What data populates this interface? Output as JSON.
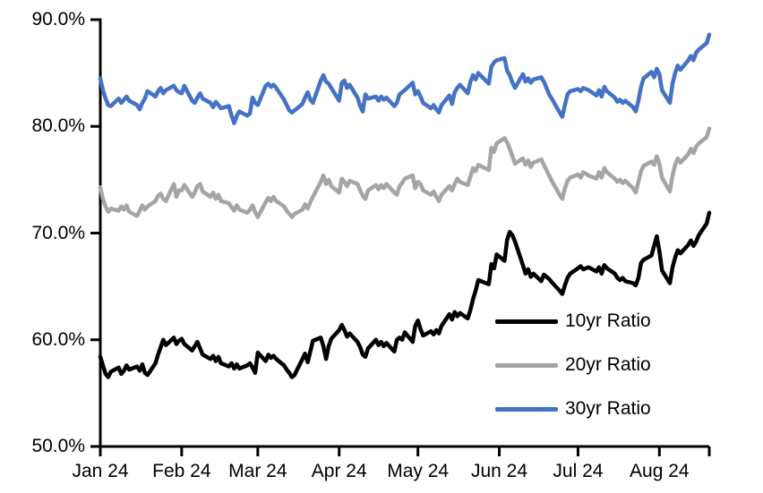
{
  "chart_data": {
    "type": "line",
    "title": "",
    "grid": false,
    "legend_position": "inside-lower-right",
    "y_axis": {
      "min": 50,
      "max": 90,
      "unit": "%",
      "tick_values": [
        90,
        80,
        70,
        60,
        50
      ],
      "tick_labels": [
        "90.0%",
        "80.0%",
        "70.0%",
        "60.0%",
        "50.0%"
      ]
    },
    "x_axis": {
      "range_days": [
        0,
        232
      ],
      "tick_day_offsets": [
        0,
        31,
        60,
        91,
        121,
        152,
        182,
        213
      ],
      "tick_labels": [
        "Jan 24",
        "Feb 24",
        "Mar 24",
        "Apr 24",
        "May 24",
        "Jun 24",
        "Jul 24",
        "Aug 24"
      ],
      "end_tick": true
    },
    "days": [
      0,
      1,
      2,
      3,
      4,
      7,
      8,
      9,
      10,
      11,
      14,
      15,
      16,
      17,
      18,
      21,
      22,
      23,
      24,
      25,
      28,
      29,
      30,
      31,
      32,
      35,
      36,
      37,
      38,
      39,
      42,
      43,
      44,
      45,
      46,
      49,
      50,
      51,
      52,
      53,
      56,
      57,
      58,
      59,
      60,
      63,
      64,
      65,
      66,
      67,
      70,
      71,
      72,
      73,
      74,
      77,
      78,
      79,
      80,
      81,
      84,
      85,
      86,
      87,
      88,
      91,
      92,
      93,
      94,
      95,
      98,
      99,
      100,
      101,
      102,
      105,
      106,
      107,
      108,
      109,
      112,
      113,
      114,
      115,
      116,
      119,
      120,
      121,
      122,
      123,
      126,
      127,
      128,
      129,
      130,
      133,
      134,
      135,
      136,
      137,
      140,
      141,
      142,
      143,
      144,
      148,
      149,
      150,
      151,
      154,
      155,
      156,
      157,
      158,
      161,
      162,
      163,
      164,
      165,
      168,
      169,
      171,
      172,
      175,
      176,
      177,
      178,
      179,
      182,
      183,
      184,
      186,
      189,
      190,
      191,
      192,
      193,
      196,
      197,
      198,
      199,
      200,
      203,
      204,
      205,
      206,
      207,
      210,
      211,
      212,
      213,
      214,
      217,
      218,
      219,
      220,
      221,
      224,
      225,
      226,
      227,
      228,
      231,
      232
    ],
    "series": [
      {
        "name": "10yr Ratio",
        "color": "#000000",
        "values": [
          58.4,
          57.6,
          56.8,
          56.5,
          57.0,
          57.4,
          56.8,
          57.1,
          57.6,
          57.2,
          57.5,
          57.1,
          57.7,
          56.9,
          56.7,
          57.8,
          58.6,
          59.3,
          60.0,
          59.5,
          60.2,
          59.6,
          59.9,
          60.1,
          59.6,
          59.0,
          59.4,
          59.8,
          59.2,
          58.6,
          58.2,
          58.5,
          58.0,
          58.4,
          57.8,
          57.5,
          57.8,
          57.3,
          57.7,
          57.3,
          57.6,
          57.8,
          57.4,
          56.9,
          58.8,
          58.0,
          58.6,
          58.3,
          58.5,
          58.2,
          57.6,
          57.2,
          56.9,
          56.5,
          56.7,
          58.2,
          58.7,
          57.9,
          58.9,
          59.9,
          60.2,
          59.4,
          58.2,
          59.4,
          60.1,
          60.9,
          61.4,
          60.9,
          60.3,
          60.6,
          59.8,
          59.3,
          58.6,
          58.4,
          59.2,
          60.0,
          59.5,
          59.8,
          59.4,
          59.7,
          58.9,
          60.0,
          60.2,
          60.0,
          60.7,
          59.8,
          61.3,
          61.8,
          61.0,
          60.4,
          60.8,
          60.5,
          60.9,
          60.6,
          61.3,
          62.4,
          61.9,
          62.6,
          62.2,
          62.5,
          62.0,
          62.8,
          63.8,
          64.6,
          65.6,
          65.2,
          67.1,
          66.7,
          68.0,
          67.4,
          69.4,
          70.1,
          69.8,
          69.2,
          67.0,
          66.2,
          66.6,
          65.9,
          66.2,
          65.5,
          66.1,
          65.7,
          65.4,
          64.6,
          64.3,
          65.1,
          65.8,
          66.2,
          66.7,
          66.9,
          66.6,
          66.8,
          66.4,
          66.8,
          66.2,
          67.0,
          66.7,
          66.2,
          65.8,
          65.6,
          65.8,
          65.5,
          65.3,
          65.1,
          65.8,
          67.2,
          67.5,
          67.9,
          68.8,
          69.7,
          68.3,
          66.5,
          65.3,
          66.8,
          67.7,
          68.4,
          68.1,
          68.9,
          69.3,
          68.8,
          69.2,
          69.8,
          70.9,
          71.9
        ]
      },
      {
        "name": "20yr Ratio",
        "color": "#A5A5A5",
        "values": [
          74.3,
          73.2,
          72.5,
          72.0,
          72.3,
          72.1,
          72.5,
          72.2,
          72.6,
          72.0,
          71.6,
          72.1,
          72.6,
          72.2,
          72.5,
          73.0,
          73.5,
          73.7,
          73.2,
          73.0,
          74.6,
          73.4,
          74.0,
          74.0,
          74.5,
          73.4,
          73.8,
          74.4,
          74.6,
          73.9,
          73.4,
          73.8,
          73.2,
          73.6,
          73.0,
          72.8,
          72.4,
          72.1,
          72.6,
          72.2,
          71.9,
          72.2,
          72.6,
          72.0,
          71.5,
          72.9,
          73.3,
          73.0,
          73.4,
          73.0,
          72.5,
          72.1,
          71.8,
          71.5,
          71.8,
          72.2,
          72.7,
          72.3,
          72.9,
          73.4,
          74.8,
          75.4,
          74.6,
          75.0,
          74.4,
          73.8,
          75.1,
          74.8,
          74.4,
          74.9,
          74.6,
          74.0,
          73.5,
          73.2,
          74.0,
          74.5,
          74.1,
          74.5,
          74.2,
          74.6,
          73.8,
          73.6,
          74.4,
          74.7,
          75.1,
          75.4,
          74.2,
          74.8,
          74.6,
          74.0,
          73.6,
          73.9,
          73.4,
          73.0,
          73.6,
          74.4,
          74.0,
          74.6,
          75.1,
          74.8,
          74.5,
          75.3,
          76.1,
          75.8,
          76.4,
          75.9,
          78.0,
          77.6,
          78.4,
          78.9,
          78.5,
          77.9,
          77.2,
          76.5,
          77.0,
          76.4,
          76.8,
          76.2,
          76.6,
          76.9,
          76.4,
          75.4,
          74.9,
          73.6,
          73.2,
          74.2,
          74.9,
          75.2,
          75.5,
          75.2,
          75.7,
          75.4,
          75.1,
          75.7,
          75.2,
          76.1,
          75.7,
          75.1,
          74.8,
          75.0,
          74.7,
          74.9,
          74.2,
          73.8,
          74.8,
          75.8,
          76.3,
          76.7,
          76.4,
          77.2,
          76.5,
          75.2,
          73.9,
          75.4,
          76.4,
          77.0,
          76.6,
          77.4,
          77.9,
          77.5,
          78.1,
          78.4,
          79.0,
          79.8
        ]
      },
      {
        "name": "30yr Ratio",
        "color": "#4472C4",
        "values": [
          84.5,
          83.4,
          82.6,
          82.0,
          81.9,
          82.6,
          82.2,
          82.5,
          82.8,
          82.4,
          82.0,
          81.6,
          82.2,
          82.6,
          83.3,
          82.8,
          83.3,
          83.6,
          83.1,
          83.4,
          83.8,
          83.4,
          83.2,
          83.1,
          83.8,
          82.4,
          82.2,
          82.7,
          83.1,
          82.6,
          82.2,
          81.8,
          82.3,
          82.0,
          81.7,
          81.9,
          81.0,
          80.3,
          81.0,
          81.4,
          81.0,
          81.2,
          82.7,
          82.2,
          82.0,
          83.8,
          84.0,
          83.7,
          83.9,
          83.6,
          82.5,
          82.0,
          81.5,
          81.3,
          81.5,
          82.1,
          82.7,
          83.2,
          82.5,
          82.2,
          84.3,
          84.8,
          84.2,
          84.0,
          83.6,
          82.4,
          84.1,
          84.3,
          83.6,
          83.9,
          82.7,
          81.9,
          81.4,
          83.0,
          82.6,
          82.8,
          82.4,
          82.8,
          82.5,
          82.7,
          81.9,
          82.2,
          83.0,
          83.2,
          83.4,
          84.1,
          83.0,
          83.3,
          82.8,
          82.2,
          81.7,
          82.0,
          81.6,
          81.3,
          82.0,
          82.9,
          82.1,
          83.2,
          83.6,
          83.9,
          83.1,
          84.2,
          84.8,
          84.4,
          85.0,
          84.0,
          85.6,
          86.0,
          86.2,
          86.4,
          85.2,
          84.8,
          84.1,
          83.6,
          84.9,
          84.2,
          84.5,
          84.1,
          84.4,
          84.6,
          84.2,
          83.0,
          82.6,
          81.3,
          80.9,
          82.0,
          83.0,
          83.3,
          83.5,
          83.3,
          83.6,
          83.4,
          82.9,
          83.4,
          82.8,
          83.7,
          83.3,
          82.7,
          82.3,
          82.5,
          82.2,
          82.4,
          81.8,
          81.4,
          82.4,
          83.7,
          84.5,
          85.1,
          84.6,
          85.4,
          84.9,
          83.4,
          82.2,
          84.0,
          85.0,
          85.7,
          85.3,
          86.2,
          86.6,
          86.2,
          86.9,
          87.2,
          87.8,
          88.6
        ]
      }
    ],
    "axis_color": "#000000",
    "line_width": 4.5
  }
}
